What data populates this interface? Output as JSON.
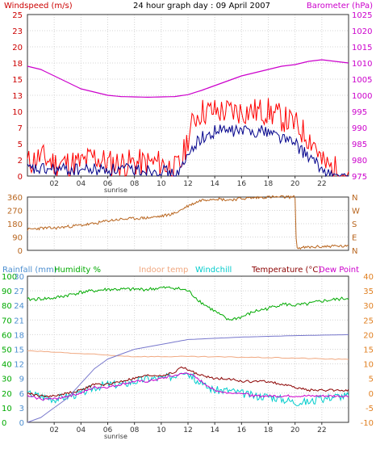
{
  "chart_data": [
    {
      "type": "line",
      "title": "24 hour graph day : 09 April 2007",
      "x_ticks": [
        "02",
        "04",
        "06",
        "08",
        "10",
        "12",
        "14",
        "16",
        "18",
        "20",
        "22"
      ],
      "x_note": "sunrise",
      "left_axis": {
        "label": "Windspeed (m/s)",
        "ylim": [
          0,
          25
        ],
        "ticks": [
          "0",
          "2",
          "5",
          "7",
          "10",
          "13",
          "15",
          "18",
          "20",
          "23",
          "25"
        ]
      },
      "right_axis": {
        "label": "Barometer (hPa)",
        "ylim": [
          975,
          1025
        ],
        "ticks": [
          "975",
          "980",
          "985",
          "990",
          "995",
          "1000",
          "1005",
          "1010",
          "1015",
          "1020",
          "1025"
        ]
      },
      "colors": {
        "gust": "#ff0000",
        "wind": "#00008b",
        "barometer": "#cc00cc"
      },
      "series": [
        {
          "key": "gust",
          "axis": "left",
          "x": [
            0,
            1,
            2,
            3,
            4,
            5,
            6,
            7,
            8,
            9,
            10,
            11,
            11.5,
            12,
            12.5,
            13,
            13.5,
            14,
            15,
            16,
            17,
            18,
            19,
            20,
            20.5,
            21,
            21.5,
            22,
            23,
            24
          ],
          "values": [
            2,
            3,
            2,
            2,
            2,
            3,
            2,
            2,
            2,
            2,
            2,
            1,
            2,
            6,
            9,
            10,
            10,
            10,
            10,
            10,
            10,
            10,
            9,
            8,
            7,
            6,
            5,
            2,
            1,
            0
          ]
        },
        {
          "key": "wind",
          "axis": "left",
          "x": [
            0,
            1,
            2,
            3,
            4,
            5,
            6,
            7,
            8,
            9,
            10,
            11,
            11.5,
            12,
            12.5,
            13,
            13.5,
            14,
            15,
            16,
            17,
            18,
            19,
            20,
            20.5,
            21,
            21.5,
            22,
            23,
            24
          ],
          "values": [
            1,
            1,
            1,
            1,
            1,
            1,
            1,
            1,
            1,
            1,
            1,
            0,
            1,
            3,
            5,
            6,
            6,
            7,
            7,
            7,
            7,
            7,
            6,
            5,
            4,
            3,
            2,
            1,
            0,
            0
          ]
        },
        {
          "key": "barometer",
          "axis": "right",
          "x": [
            0,
            1,
            2,
            3,
            4,
            5,
            6,
            7,
            8,
            9,
            10,
            11,
            12,
            13,
            14,
            15,
            16,
            17,
            18,
            19,
            20,
            21,
            22,
            23,
            24
          ],
          "values": [
            1009,
            1008,
            1006,
            1004,
            1002,
            1001,
            1000,
            999.6,
            999.5,
            999.4,
            999.5,
            999.6,
            1000.2,
            1001.5,
            1003,
            1004.5,
            1006,
            1007,
            1008,
            1009,
            1009.5,
            1010.5,
            1011,
            1010.5,
            1010
          ]
        }
      ]
    },
    {
      "type": "line",
      "left_axis": {
        "ylim": [
          0,
          360
        ],
        "ticks": [
          "0",
          "90",
          "180",
          "270",
          "360"
        ]
      },
      "right_axis": {
        "ticks": [
          "N",
          "W",
          "S",
          "E",
          "N"
        ]
      },
      "colors": {
        "direction": "#b8651e"
      },
      "series": [
        {
          "key": "direction",
          "x": [
            0,
            1,
            2,
            3,
            4,
            5,
            6,
            7,
            8,
            9,
            10,
            11,
            12,
            13,
            14,
            15,
            16,
            17,
            18,
            19,
            20,
            20.1,
            21,
            22,
            23,
            24
          ],
          "values": [
            140,
            150,
            150,
            160,
            170,
            180,
            200,
            210,
            215,
            220,
            230,
            250,
            300,
            340,
            350,
            340,
            350,
            355,
            360,
            360,
            360,
            15,
            20,
            25,
            30,
            25
          ]
        }
      ]
    },
    {
      "type": "line",
      "left_labels": [
        "Rainfall (mm)",
        "Humidity %"
      ],
      "legend": [
        "Indoor temp",
        "Windchill",
        "Temperature (°C)",
        "Dew Point"
      ],
      "rain_ticks": [
        "0",
        "3",
        "6",
        "9",
        "12",
        "15",
        "18",
        "21",
        "24",
        "27",
        "30"
      ],
      "humidity_ticks": [
        "0",
        "10",
        "20",
        "30",
        "40",
        "50",
        "60",
        "70",
        "80",
        "90",
        "100"
      ],
      "temp_ticks": [
        "40",
        "35",
        "30",
        "25",
        "20",
        "15",
        "10",
        "5",
        "0",
        "-5",
        "-10"
      ],
      "humidity_ylim": [
        0,
        100
      ],
      "temp_ylim": [
        -10,
        40
      ],
      "colors": {
        "rain_label": "#4d8fd0",
        "humidity": "#00aa00",
        "indoor": "#f0a880",
        "windchill": "#00cccc",
        "temperature": "#8b0000",
        "dewpoint": "#cc00cc",
        "rain": "#7777cc",
        "temp_axis": "#e07f20"
      },
      "series": [
        {
          "key": "humidity",
          "x": [
            0,
            2,
            3,
            4,
            5,
            6,
            7,
            8,
            9,
            10,
            11,
            12,
            13,
            14,
            15,
            16,
            17,
            18,
            19,
            20,
            21,
            22,
            23,
            24
          ],
          "values": [
            84,
            85,
            87,
            89,
            90,
            91,
            91,
            91,
            91,
            92,
            92,
            90,
            82,
            76,
            70,
            72,
            76,
            78,
            81,
            80,
            81,
            83,
            84,
            85
          ]
        },
        {
          "key": "indoor",
          "x": [
            0,
            4,
            8,
            12,
            16,
            20,
            24
          ],
          "values": [
            14.5,
            13.5,
            12.5,
            12.5,
            12.3,
            12,
            11.5
          ]
        },
        {
          "key": "windchill",
          "x": [
            0,
            1,
            2,
            3,
            4,
            5,
            6,
            7,
            8,
            9,
            10,
            11,
            11.5,
            12,
            13,
            14,
            15,
            16,
            17,
            18,
            19,
            20,
            21,
            22,
            23,
            24
          ],
          "values": [
            0,
            -1,
            -2,
            -1,
            0,
            2,
            3,
            3,
            4,
            5,
            5,
            6,
            8,
            7,
            3,
            1,
            1,
            0,
            -1,
            -1,
            -2,
            -3,
            -3,
            -2,
            -1,
            -1
          ]
        },
        {
          "key": "temperature",
          "x": [
            0,
            1,
            2,
            3,
            4,
            5,
            6,
            7,
            8,
            9,
            10,
            11,
            11.5,
            12,
            13,
            14,
            15,
            16,
            17,
            18,
            19,
            20,
            21,
            22,
            23,
            24
          ],
          "values": [
            0,
            -1,
            -1,
            0,
            1,
            3,
            3,
            4,
            5,
            6,
            6,
            7,
            9,
            8,
            6,
            5,
            5,
            4,
            4,
            4,
            3,
            2,
            1,
            1,
            1,
            1
          ]
        },
        {
          "key": "dewpoint",
          "x": [
            0,
            1,
            2,
            3,
            4,
            5,
            6,
            7,
            8,
            9,
            10,
            11,
            12,
            13,
            14,
            15,
            16,
            17,
            18,
            19,
            20,
            21,
            22,
            23,
            24
          ],
          "values": [
            -1,
            -2,
            -2,
            -1,
            0,
            2,
            2,
            3,
            4,
            4,
            5,
            6,
            7,
            4,
            1,
            0,
            0,
            -1,
            -1,
            -1,
            -1,
            -1,
            -1,
            -1,
            -1
          ]
        },
        {
          "key": "rain",
          "axis": "rainfall",
          "x": [
            0,
            1,
            2,
            3,
            4,
            5,
            6,
            7,
            8,
            10,
            12,
            16,
            20,
            24
          ],
          "values": [
            0,
            1,
            3,
            5,
            8,
            11,
            13,
            14,
            15,
            16,
            17,
            17.5,
            17.8,
            18
          ]
        }
      ]
    }
  ]
}
